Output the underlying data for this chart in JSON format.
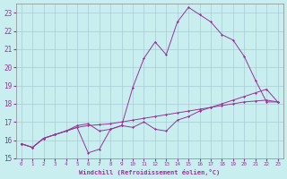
{
  "xlabel": "Windchill (Refroidissement éolien,°C)",
  "bg_color": "#c8eef0",
  "grid_color": "#aaccd4",
  "line_color": "#993399",
  "xlim": [
    -0.5,
    23.5
  ],
  "ylim": [
    15,
    23.5
  ],
  "yticks": [
    15,
    16,
    17,
    18,
    19,
    20,
    21,
    22,
    23
  ],
  "xticks": [
    0,
    1,
    2,
    3,
    4,
    5,
    6,
    7,
    8,
    9,
    10,
    11,
    12,
    13,
    14,
    15,
    16,
    17,
    18,
    19,
    20,
    21,
    22,
    23
  ],
  "line1_x": [
    0,
    1,
    2,
    3,
    4,
    5,
    6,
    7,
    8,
    9,
    10,
    11,
    12,
    13,
    14,
    15,
    16,
    17,
    18,
    19,
    20,
    21,
    22,
    23
  ],
  "line1_y": [
    15.8,
    15.6,
    16.1,
    16.3,
    16.5,
    16.7,
    16.8,
    16.85,
    16.9,
    17.0,
    17.1,
    17.2,
    17.3,
    17.4,
    17.5,
    17.6,
    17.7,
    17.8,
    17.9,
    18.0,
    18.1,
    18.15,
    18.2,
    18.1
  ],
  "line2_x": [
    0,
    1,
    2,
    3,
    4,
    5,
    6,
    7,
    8,
    9,
    10,
    11,
    12,
    13,
    14,
    15,
    16,
    17,
    18,
    19,
    20,
    21,
    22,
    23
  ],
  "line2_y": [
    15.8,
    15.6,
    16.1,
    16.3,
    16.5,
    16.7,
    15.3,
    15.5,
    16.6,
    16.8,
    16.7,
    17.0,
    16.6,
    16.5,
    17.1,
    17.3,
    17.6,
    17.8,
    18.0,
    18.2,
    18.4,
    18.6,
    18.8,
    18.1
  ],
  "line3_x": [
    0,
    1,
    2,
    3,
    4,
    5,
    6,
    7,
    8,
    9,
    10,
    11,
    12,
    13,
    14,
    15,
    16,
    17,
    18,
    19,
    20,
    21,
    22,
    23
  ],
  "line3_y": [
    15.8,
    15.6,
    16.1,
    16.3,
    16.5,
    16.8,
    16.9,
    16.5,
    16.6,
    16.8,
    18.9,
    20.5,
    21.4,
    20.7,
    22.5,
    23.3,
    22.9,
    22.5,
    21.8,
    21.5,
    20.6,
    19.3,
    18.1,
    18.1
  ]
}
